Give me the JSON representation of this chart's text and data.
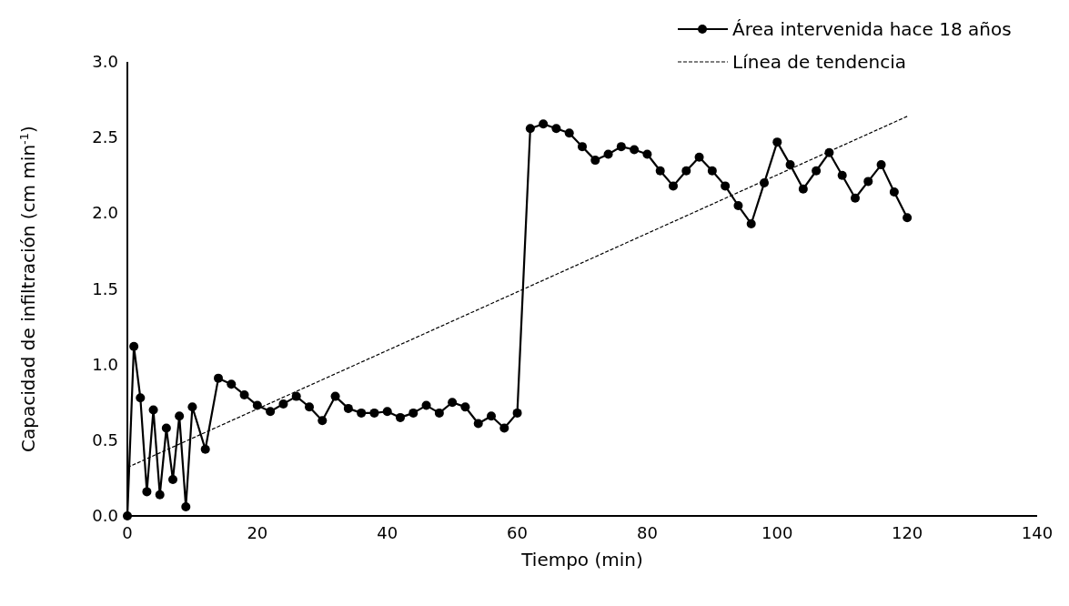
{
  "chart_data": {
    "type": "line",
    "xlabel": "Tiempo (min)",
    "ylabel": "Capacidad de infiltración (cm min$^{-1}$)",
    "xlim": [
      0,
      140
    ],
    "xticks": [
      0,
      20,
      40,
      60,
      80,
      100,
      120,
      140
    ],
    "ylim": [
      0,
      3
    ],
    "yticks": [
      {
        "value": 0,
        "label": "0.0"
      },
      {
        "value": 0.5,
        "label": "0.5"
      },
      {
        "value": 1,
        "label": "1.0"
      },
      {
        "value": 1.5,
        "label": "1.5"
      },
      {
        "value": 2,
        "label": "2.0"
      },
      {
        "value": 2.5,
        "label": "2.5"
      },
      {
        "value": 3,
        "label": "3.0"
      }
    ],
    "grid": false,
    "legend": "top right",
    "series": [
      {
        "name": "Área intervenida hace 18 años",
        "color": "#000000",
        "marker": "circle",
        "line_style": "solid",
        "x": [
          0,
          1,
          2,
          3,
          4,
          5,
          6,
          7,
          8,
          9,
          10,
          12,
          14,
          16,
          18,
          20,
          22,
          24,
          26,
          28,
          30,
          32,
          34,
          36,
          38,
          40,
          42,
          44,
          46,
          48,
          50,
          52,
          54,
          56,
          58,
          60,
          62,
          64,
          66,
          68,
          70,
          72,
          74,
          76,
          78,
          80,
          82,
          84,
          86,
          88,
          90,
          92,
          94,
          96,
          98,
          100,
          102,
          104,
          106,
          108,
          110,
          112,
          114,
          116,
          118,
          120
        ],
        "values": [
          0.0,
          1.12,
          0.78,
          0.16,
          0.7,
          0.14,
          0.58,
          0.24,
          0.66,
          0.06,
          0.72,
          0.44,
          0.91,
          0.87,
          0.8,
          0.73,
          0.69,
          0.74,
          0.79,
          0.72,
          0.63,
          0.79,
          0.71,
          0.68,
          0.68,
          0.69,
          0.65,
          0.68,
          0.73,
          0.68,
          0.75,
          0.72,
          0.61,
          0.66,
          0.58,
          0.68,
          2.56,
          2.59,
          2.56,
          2.53,
          2.44,
          2.35,
          2.39,
          2.44,
          2.42,
          2.39,
          2.28,
          2.18,
          2.28,
          2.37,
          2.28,
          2.18,
          2.05,
          1.93,
          2.2,
          2.47,
          2.32,
          2.16,
          2.28,
          2.4,
          2.25,
          2.1,
          2.21,
          2.32,
          2.14,
          1.97
        ]
      },
      {
        "name": "Línea de tendencia",
        "color": "#000000",
        "marker": "none",
        "line_style": "dashed",
        "x": [
          0,
          120
        ],
        "values": [
          0.32,
          2.64
        ]
      }
    ]
  }
}
